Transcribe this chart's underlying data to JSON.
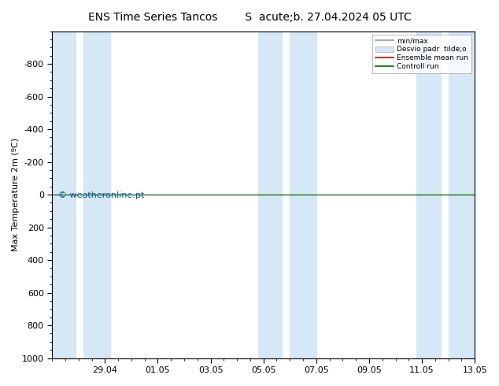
{
  "title": "ENS Time Series Tancos        S  acute;b. 27.04.2024 05 UTC",
  "ylabel": "Max Temperature 2m (ºC)",
  "xlabel_ticks": [
    "29.04",
    "01.05",
    "03.05",
    "05.05",
    "07.05",
    "09.05",
    "11.05",
    "13.05"
  ],
  "x_tick_positions": [
    2,
    4,
    6,
    8,
    10,
    12,
    14,
    16
  ],
  "ylim_bottom": 1000,
  "ylim_top": -1000,
  "yticks": [
    -800,
    -600,
    -400,
    -200,
    0,
    200,
    400,
    600,
    800,
    1000
  ],
  "bg_color": "#ffffff",
  "band_color": "#d6e8f5",
  "watermark": "© weatheronline.pt",
  "watermark_color": "#1155aa",
  "legend_labels": [
    "min/max",
    "Desvio padr  tilde;o",
    "Ensemble mean run",
    "Controll run"
  ],
  "legend_colors_line": [
    "#999999",
    "#ccddee",
    "#cc0000",
    "#006600"
  ],
  "control_run_y": 0.0,
  "ensemble_mean_y": 0.0,
  "title_fontsize": 10,
  "tick_fontsize": 8,
  "ylabel_fontsize": 8,
  "watermark_fontsize": 8,
  "x_min": 0,
  "x_max": 16,
  "band_positions": [
    [
      0.0,
      0.9
    ],
    [
      1.2,
      2.2
    ],
    [
      7.8,
      8.7
    ],
    [
      9.0,
      10.0
    ],
    [
      13.8,
      14.7
    ],
    [
      15.0,
      16.0
    ]
  ]
}
